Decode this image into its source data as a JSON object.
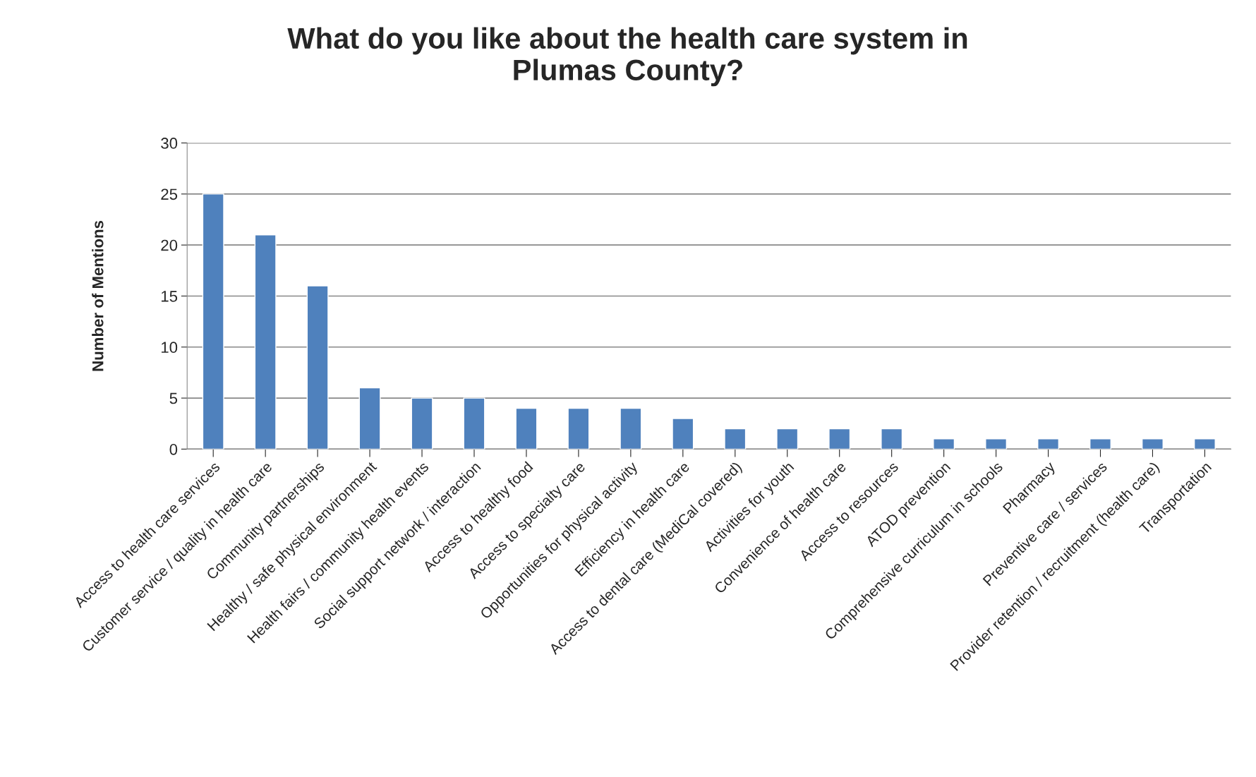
{
  "chart_data": {
    "type": "bar",
    "title": "What do you like about the health care system in\nPlumas County?",
    "ylabel": "Number of Mentions",
    "categories": [
      "Access to health care services",
      "Customer service / quality in health care",
      "Community partnerships",
      "Healthy / safe physical environment",
      "Health fairs / community health events",
      "Social support network / interaction",
      "Access to healthy food",
      "Access to specialty care",
      "Opportunities for physical activity",
      "Efficiency in health care",
      "Access to dental care (MediCal covered)",
      "Activities for youth",
      "Convenience of health care",
      "Access to resources",
      "ATOD prevention",
      "Comprehensive curriculum in schools",
      "Pharmacy",
      "Preventive care / services",
      "Provider retention / recruitment (health care)",
      "Transportation"
    ],
    "values": [
      25,
      21,
      16,
      6,
      5,
      5,
      4,
      4,
      4,
      3,
      2,
      2,
      2,
      2,
      1,
      1,
      1,
      1,
      1,
      1
    ],
    "color": "#4f81bd",
    "ylim": [
      0,
      30
    ],
    "yticks": [
      0,
      5,
      10,
      15,
      20,
      25,
      30
    ],
    "grid": "y",
    "legend": false
  }
}
